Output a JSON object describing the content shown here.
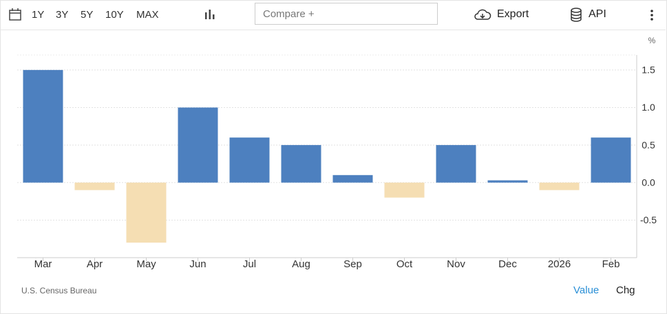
{
  "toolbar": {
    "ranges": [
      "1Y",
      "3Y",
      "5Y",
      "10Y",
      "MAX"
    ],
    "compare": "Compare +",
    "export": "Export",
    "api": "API"
  },
  "chart_data": {
    "type": "bar",
    "unit": "%",
    "categories": [
      "Mar",
      "Apr",
      "May",
      "Jun",
      "Jul",
      "Aug",
      "Sep",
      "Oct",
      "Nov",
      "Dec",
      "2026",
      "Feb"
    ],
    "values": [
      1.5,
      -0.1,
      -0.8,
      1.0,
      0.6,
      0.5,
      0.1,
      -0.2,
      0.5,
      0.03,
      -0.1,
      0.6
    ],
    "positive_color": "#4d80bf",
    "negative_color": "#f5deb3",
    "ylim": [
      -1,
      1.7
    ],
    "yticks": [
      -0.5,
      {
        "value": 0,
        "label": "0.0"
      },
      0.5,
      {
        "value": 1,
        "label": "1.0"
      },
      1.5
    ],
    "grid": true
  },
  "footer": {
    "source": "U.S. Census Bureau",
    "value": "Value",
    "chg": "Chg"
  }
}
